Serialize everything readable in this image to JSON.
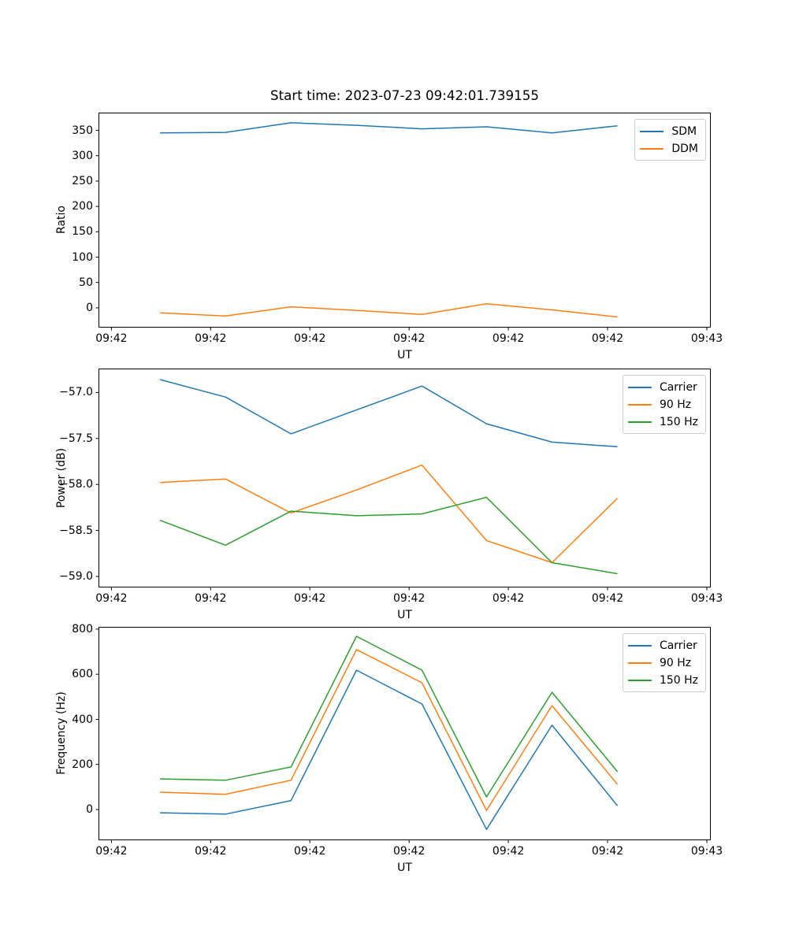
{
  "figure": {
    "title": "Start time: 2023-07-23 09:42:01.739155"
  },
  "chart_data": [
    {
      "type": "line",
      "name": "ratio-chart",
      "xlabel": "UT",
      "ylabel": "Ratio",
      "grid": false,
      "legend_position": "upper right",
      "xlim": [
        -1.3,
        60.4
      ],
      "ylim": [
        -39,
        385
      ],
      "x": [
        4.9,
        11.5,
        18.1,
        24.7,
        31.3,
        37.8,
        44.4,
        51.0
      ],
      "x_ticks": {
        "values": [
          0,
          10,
          20,
          30,
          40,
          50,
          60
        ],
        "labels": [
          "09:42",
          "09:42",
          "09:42",
          "09:42",
          "09:42",
          "09:42",
          "09:43"
        ]
      },
      "y_ticks": {
        "values": [
          0,
          50,
          100,
          150,
          200,
          250,
          300,
          350
        ],
        "labels": [
          "0",
          "50",
          "100",
          "150",
          "200",
          "250",
          "300",
          "350"
        ]
      },
      "series": [
        {
          "name": "SDM",
          "color": "#1f77b4",
          "values": [
            345,
            346,
            365,
            360,
            353,
            357,
            345,
            359
          ]
        },
        {
          "name": "DDM",
          "color": "#ff7f0e",
          "values": [
            -10,
            -16,
            2,
            -5,
            -13,
            8,
            -4,
            -18
          ]
        }
      ]
    },
    {
      "type": "line",
      "name": "power-chart",
      "xlabel": "UT",
      "ylabel": "Power (dB)",
      "grid": false,
      "legend_position": "upper right",
      "xlim": [
        -1.3,
        60.4
      ],
      "ylim": [
        -59.12,
        -56.74
      ],
      "x": [
        4.9,
        11.5,
        18.1,
        24.7,
        31.3,
        37.8,
        44.4,
        51.0
      ],
      "x_ticks": {
        "values": [
          0,
          10,
          20,
          30,
          40,
          50,
          60
        ],
        "labels": [
          "09:42",
          "09:42",
          "09:42",
          "09:42",
          "09:42",
          "09:42",
          "09:43"
        ]
      },
      "y_ticks": {
        "values": [
          -57.0,
          -57.5,
          -58.0,
          -58.5,
          -59.0
        ],
        "labels": [
          "−57.0",
          "−57.5",
          "−58.0",
          "−58.5",
          "−59.0"
        ]
      },
      "series": [
        {
          "name": "Carrier",
          "color": "#1f77b4",
          "values": [
            -56.86,
            -57.05,
            -57.45,
            -57.19,
            -56.93,
            -57.34,
            -57.54,
            -57.59
          ]
        },
        {
          "name": "90 Hz",
          "color": "#ff7f0e",
          "values": [
            -57.98,
            -57.94,
            -58.31,
            -58.06,
            -57.79,
            -58.61,
            -58.85,
            -58.15
          ]
        },
        {
          "name": "150 Hz",
          "color": "#2ca02c",
          "values": [
            -58.39,
            -58.66,
            -58.29,
            -58.34,
            -58.32,
            -58.14,
            -58.85,
            -58.97
          ]
        }
      ]
    },
    {
      "type": "line",
      "name": "frequency-chart",
      "xlabel": "UT",
      "ylabel": "Frequency (Hz)",
      "grid": false,
      "legend_position": "upper right",
      "xlim": [
        -1.3,
        60.4
      ],
      "ylim": [
        -136,
        810
      ],
      "x": [
        4.9,
        11.5,
        18.1,
        24.7,
        31.3,
        37.8,
        44.4,
        51.0
      ],
      "x_ticks": {
        "values": [
          0,
          10,
          20,
          30,
          40,
          50,
          60
        ],
        "labels": [
          "09:42",
          "09:42",
          "09:42",
          "09:42",
          "09:42",
          "09:42",
          "09:43"
        ]
      },
      "y_ticks": {
        "values": [
          0,
          200,
          400,
          600,
          800
        ],
        "labels": [
          "0",
          "200",
          "400",
          "600",
          "800"
        ]
      },
      "series": [
        {
          "name": "Carrier",
          "color": "#1f77b4",
          "values": [
            -14,
            -20,
            40,
            618,
            468,
            -88,
            374,
            17
          ]
        },
        {
          "name": "90 Hz",
          "color": "#ff7f0e",
          "values": [
            77,
            68,
            130,
            709,
            562,
            -4,
            461,
            112
          ]
        },
        {
          "name": "150 Hz",
          "color": "#2ca02c",
          "values": [
            136,
            130,
            189,
            768,
            618,
            56,
            520,
            168
          ]
        }
      ]
    }
  ]
}
